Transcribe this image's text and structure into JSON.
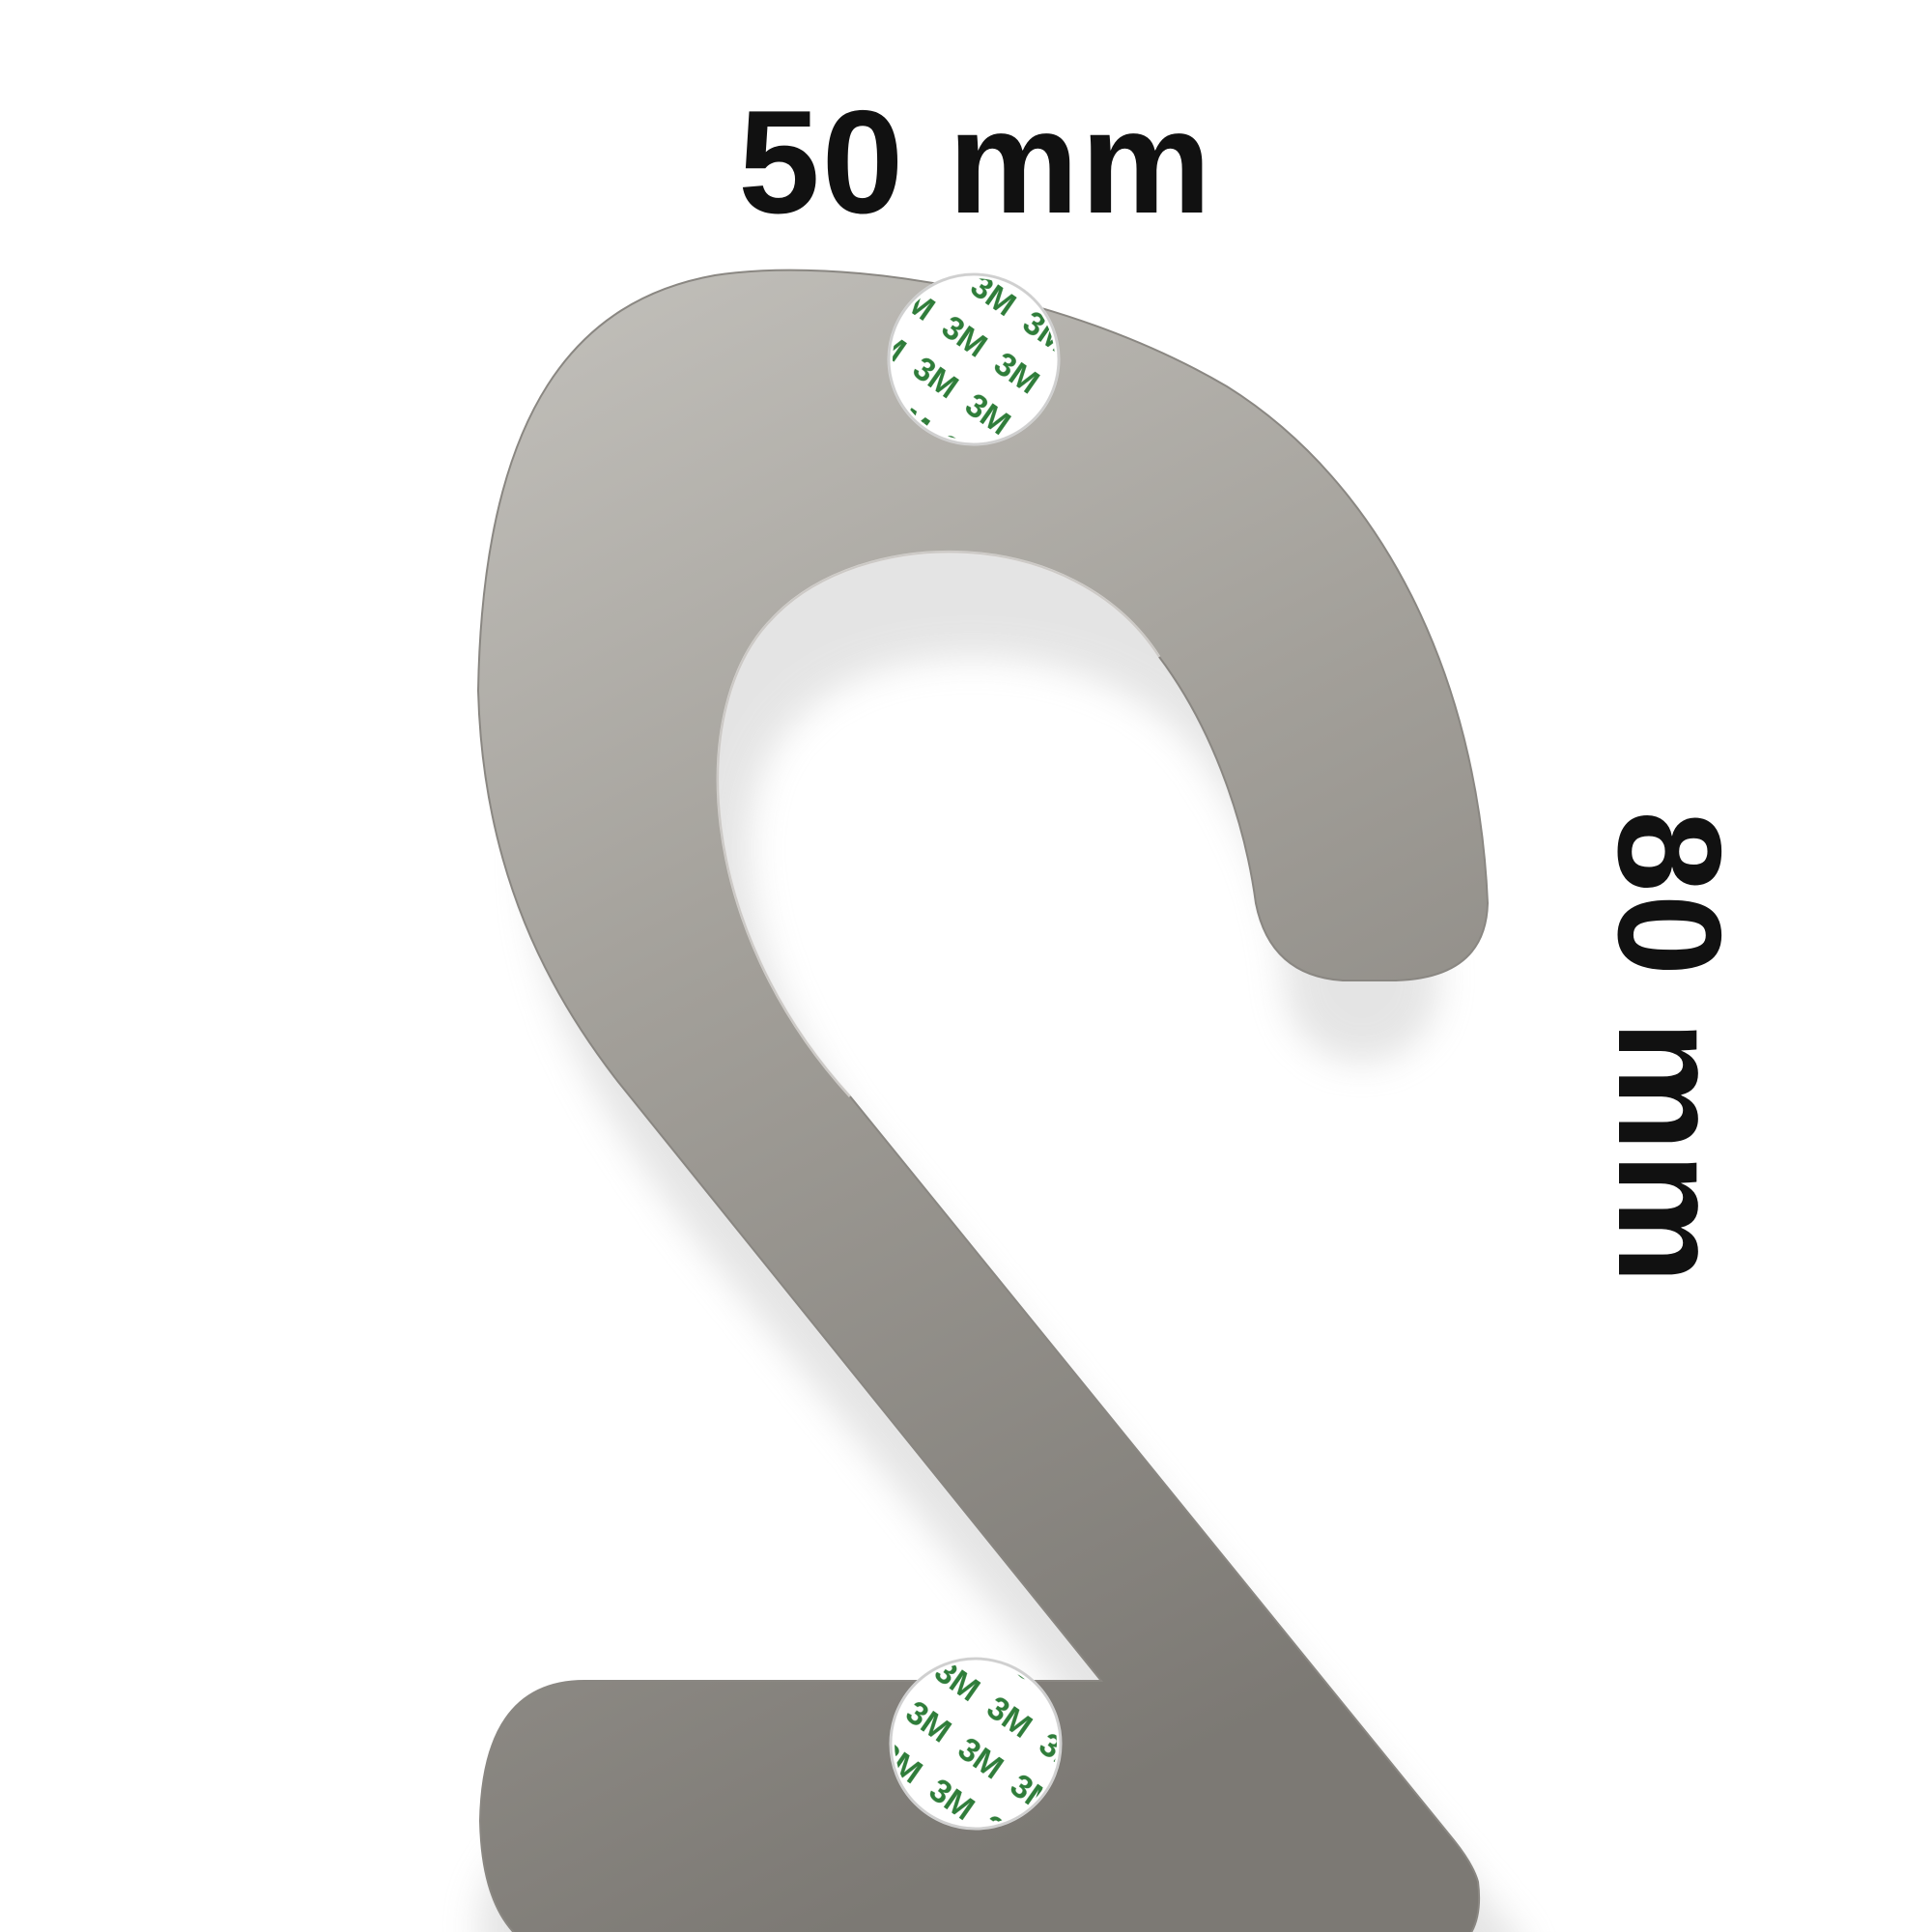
{
  "dimensions": {
    "width_label": "50 mm",
    "height_label": "80 mm"
  },
  "product": {
    "object": "digit-two-house-number",
    "material_color": "#a09d97",
    "adhesive_pad_brand": "3M",
    "adhesive_pad_count": 2,
    "adhesive_pad_text_color": "#2f7d3a"
  }
}
